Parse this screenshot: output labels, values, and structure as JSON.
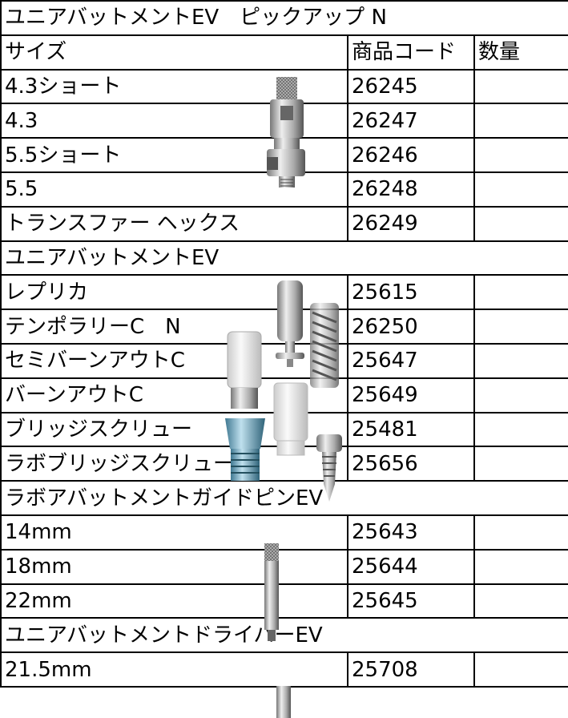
{
  "table": {
    "title": "ユニアバットメントEV　ピックアップ N",
    "columns": [
      "サイズ",
      "商品コード",
      "数量"
    ],
    "groups": [
      {
        "rows": [
          [
            "4.3ショート",
            "26245"
          ],
          [
            "4.3",
            "26247"
          ],
          [
            "5.5ショート",
            "26246"
          ],
          [
            "5.5",
            "26248"
          ],
          [
            "トランスファー ヘックス",
            "26249"
          ]
        ]
      },
      {
        "heading": "ユニアバットメントEV",
        "rows": [
          [
            "レプリカ",
            "25615"
          ],
          [
            "テンポラリーC　N",
            "26250"
          ],
          [
            "セミバーンアウトC",
            "25647"
          ],
          [
            "バーンアウトC",
            "25649"
          ],
          [
            "ブリッジスクリュー",
            "25481"
          ],
          [
            "ラボブリッジスクリュー",
            "25656"
          ]
        ]
      },
      {
        "heading": "ラボアバットメントガイドピンEV",
        "rows": [
          [
            "14mm",
            "25643"
          ],
          [
            "18mm",
            "25644"
          ],
          [
            "22mm",
            "25645"
          ]
        ]
      },
      {
        "heading": "ユニアバットメントドライバーEV",
        "rows": [
          [
            "21.5mm",
            "25708"
          ]
        ]
      }
    ]
  }
}
